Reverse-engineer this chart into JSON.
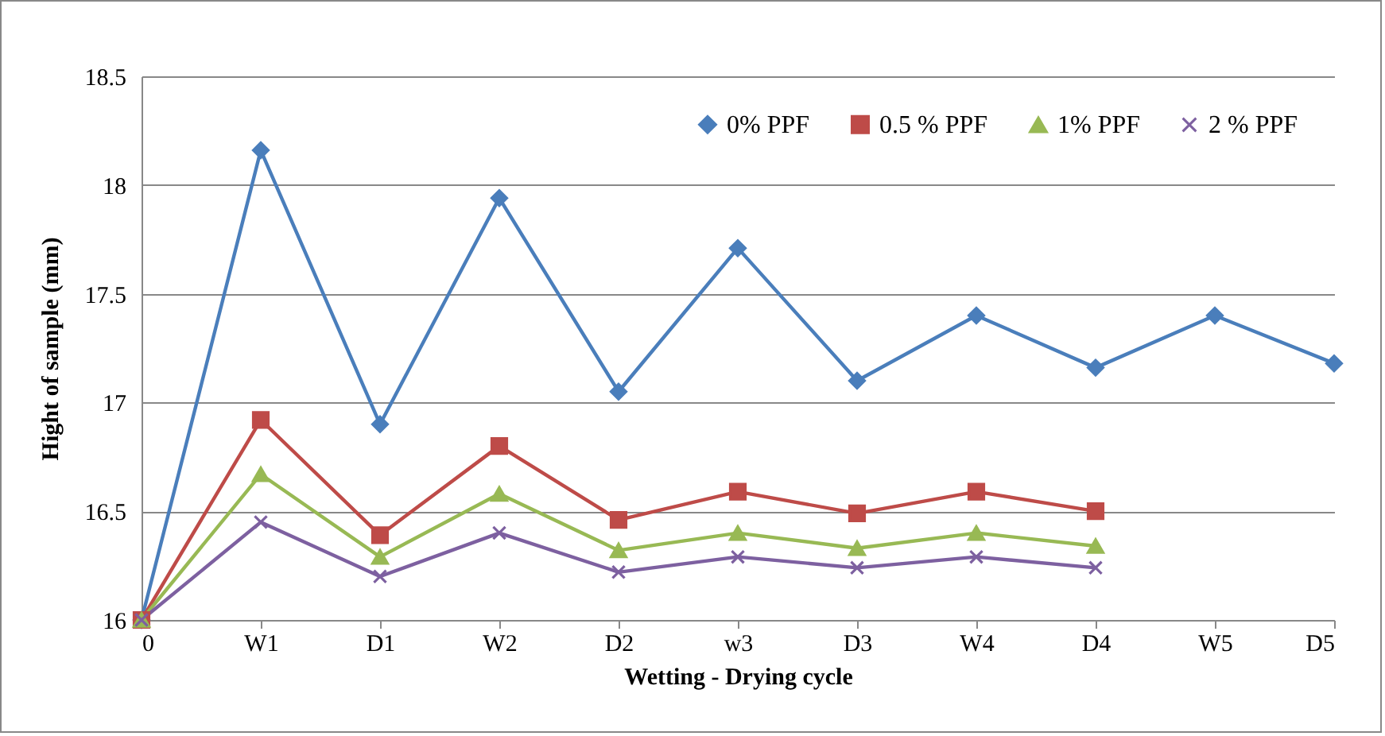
{
  "chart_data": {
    "type": "line",
    "xlabel": "Wetting - Drying cycle",
    "ylabel": "Hight of sample (mm)",
    "categories": [
      "0",
      "W1",
      "D1",
      "W2",
      "D2",
      "w3",
      "D3",
      "W4",
      "D4",
      "W5",
      "D5"
    ],
    "series": [
      {
        "name": "0% PPF",
        "color": "#4a7ebb",
        "marker": "diamond",
        "values": [
          16,
          18.16,
          16.9,
          17.94,
          17.05,
          17.71,
          17.1,
          17.4,
          17.16,
          17.4,
          17.18
        ]
      },
      {
        "name": "0.5 % PPF",
        "color": "#be4b48",
        "marker": "square",
        "values": [
          16,
          16.92,
          16.39,
          16.8,
          16.46,
          16.59,
          16.49,
          16.59,
          16.5,
          null,
          null
        ]
      },
      {
        "name": "1% PPF",
        "color": "#98b954",
        "marker": "triangle",
        "values": [
          16,
          16.67,
          16.29,
          16.58,
          16.32,
          16.4,
          16.33,
          16.4,
          16.34,
          null,
          null
        ]
      },
      {
        "name": "2 % PPF",
        "color": "#7d60a0",
        "marker": "cross",
        "values": [
          16,
          16.45,
          16.2,
          16.4,
          16.22,
          16.29,
          16.24,
          16.29,
          16.24,
          null,
          null
        ]
      }
    ],
    "ylim": [
      16,
      18.5
    ],
    "yticks": [
      16,
      16.5,
      17,
      17.5,
      18,
      18.5
    ],
    "grid": "y",
    "legend": "top right",
    "line_style": "solid"
  }
}
